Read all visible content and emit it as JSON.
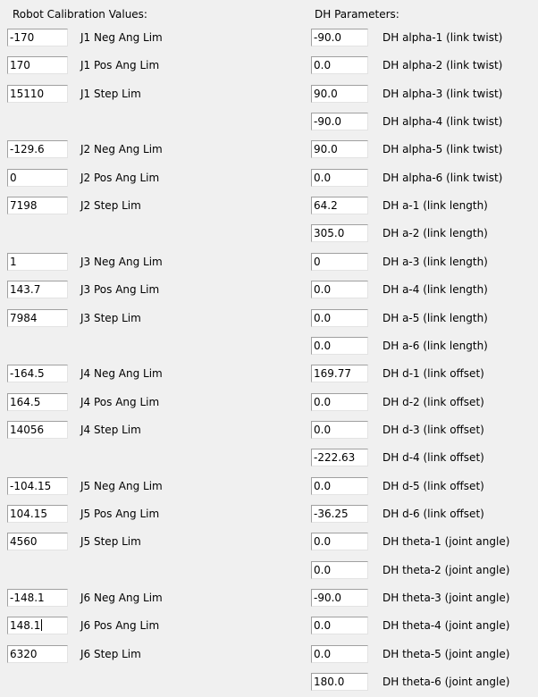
{
  "calibration": {
    "title": "Robot Calibration Values:",
    "groups": [
      {
        "rows": [
          {
            "value": "-170",
            "label": "J1 Neg Ang Lim"
          },
          {
            "value": "170",
            "label": "J1 Pos Ang Lim"
          },
          {
            "value": "15110",
            "label": "J1 Step Lim"
          }
        ]
      },
      {
        "rows": [
          {
            "value": "-129.6",
            "label": "J2 Neg Ang Lim"
          },
          {
            "value": "0",
            "label": "J2 Pos Ang Lim"
          },
          {
            "value": "7198",
            "label": "J2 Step Lim"
          }
        ]
      },
      {
        "rows": [
          {
            "value": "1",
            "label": "J3 Neg Ang Lim"
          },
          {
            "value": "143.7",
            "label": "J3 Pos Ang Lim"
          },
          {
            "value": "7984",
            "label": "J3 Step Lim"
          }
        ]
      },
      {
        "rows": [
          {
            "value": "-164.5",
            "label": "J4 Neg Ang Lim"
          },
          {
            "value": "164.5",
            "label": "J4 Pos Ang Lim"
          },
          {
            "value": "14056",
            "label": "J4 Step Lim"
          }
        ]
      },
      {
        "rows": [
          {
            "value": "-104.15",
            "label": "J5 Neg Ang Lim"
          },
          {
            "value": "104.15",
            "label": "J5 Pos Ang Lim"
          },
          {
            "value": "4560",
            "label": "J5 Step Lim"
          }
        ]
      },
      {
        "rows": [
          {
            "value": "-148.1",
            "label": "J6 Neg Ang Lim"
          },
          {
            "value": "148.1",
            "label": "J6 Pos Ang Lim",
            "focused": true
          },
          {
            "value": "6320",
            "label": "J6 Step Lim"
          }
        ]
      }
    ]
  },
  "dh": {
    "title": "DH Parameters:",
    "rows": [
      {
        "value": "-90.0",
        "label": "DH alpha-1 (link twist)"
      },
      {
        "value": "0.0",
        "label": "DH alpha-2 (link twist)"
      },
      {
        "value": "90.0",
        "label": "DH alpha-3 (link twist)"
      },
      {
        "value": "-90.0",
        "label": "DH alpha-4 (link twist)"
      },
      {
        "value": "90.0",
        "label": "DH alpha-5 (link twist)"
      },
      {
        "value": "0.0",
        "label": "DH alpha-6 (link twist)"
      },
      {
        "value": "64.2",
        "label": "DH a-1 (link length)"
      },
      {
        "value": "305.0",
        "label": "DH a-2 (link length)"
      },
      {
        "value": "0",
        "label": "DH a-3 (link length)"
      },
      {
        "value": "0.0",
        "label": "DH a-4 (link length)"
      },
      {
        "value": "0.0",
        "label": "DH a-5 (link length)"
      },
      {
        "value": "0.0",
        "label": "DH a-6 (link length)"
      },
      {
        "value": "169.77",
        "label": "DH d-1 (link offset)"
      },
      {
        "value": "0.0",
        "label": "DH d-2 (link offset)"
      },
      {
        "value": "0.0",
        "label": "DH d-3 (link offset)"
      },
      {
        "value": "-222.63",
        "label": "DH d-4 (link offset)"
      },
      {
        "value": "0.0",
        "label": "DH d-5 (link offset)"
      },
      {
        "value": "-36.25",
        "label": "DH d-6 (link offset)"
      },
      {
        "value": "0.0",
        "label": "DH theta-1 (joint angle)"
      },
      {
        "value": "0.0",
        "label": "DH theta-2 (joint angle)"
      },
      {
        "value": "-90.0",
        "label": "DH theta-3 (joint angle)"
      },
      {
        "value": "0.0",
        "label": "DH theta-4 (joint angle)"
      },
      {
        "value": "0.0",
        "label": "DH theta-5 (joint angle)"
      },
      {
        "value": "180.0",
        "label": "DH theta-6 (joint angle)"
      }
    ]
  }
}
